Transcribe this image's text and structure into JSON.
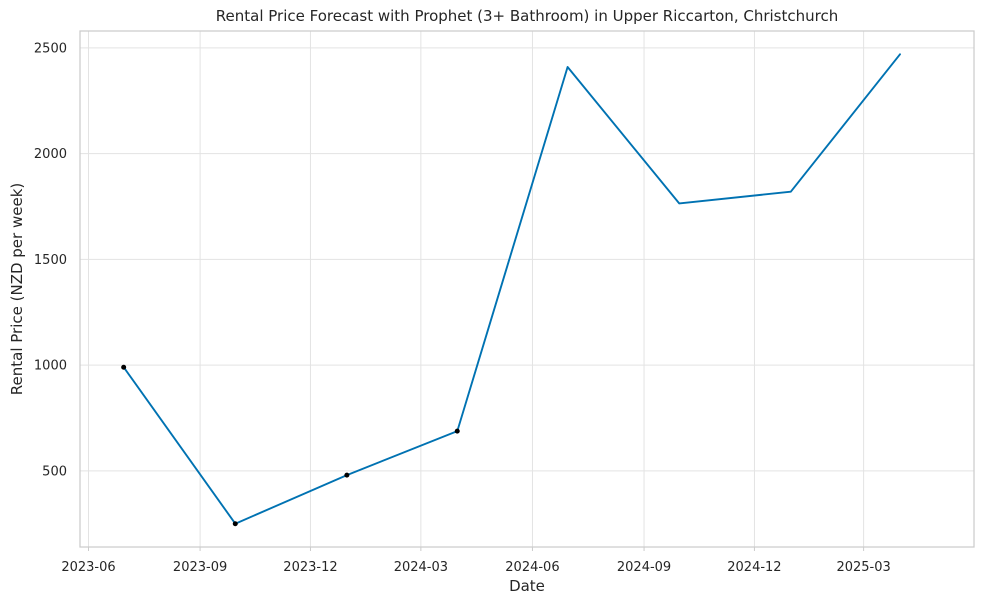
{
  "chart_data": {
    "type": "line",
    "title": "Rental Price Forecast with Prophet (3+ Bathroom) in Upper Riccarton, Christchurch",
    "xlabel": "Date",
    "ylabel": "Rental Price (NZD per week)",
    "x_ticks": [
      "2023-06",
      "2023-09",
      "2023-12",
      "2024-03",
      "2024-06",
      "2024-09",
      "2024-12",
      "2025-03"
    ],
    "y_ticks": [
      500,
      1000,
      1500,
      2000,
      2500
    ],
    "xlim": [
      "2023-05-25",
      "2025-05-31"
    ],
    "ylim": [
      140,
      2580
    ],
    "grid": true,
    "line_color": "#0072b2",
    "marker_color": "#000000",
    "observed": [
      {
        "x": "2023-06-30",
        "y": 990
      },
      {
        "x": "2023-09-30",
        "y": 250
      },
      {
        "x": "2023-12-31",
        "y": 480
      },
      {
        "x": "2024-03-31",
        "y": 688
      }
    ],
    "forecast": [
      {
        "x": "2023-06-30",
        "y": 990
      },
      {
        "x": "2023-09-30",
        "y": 250
      },
      {
        "x": "2023-12-31",
        "y": 480
      },
      {
        "x": "2024-03-31",
        "y": 688
      },
      {
        "x": "2024-06-30",
        "y": 2410
      },
      {
        "x": "2024-09-30",
        "y": 1765
      },
      {
        "x": "2024-12-31",
        "y": 1820
      },
      {
        "x": "2025-03-31",
        "y": 2470
      }
    ]
  }
}
